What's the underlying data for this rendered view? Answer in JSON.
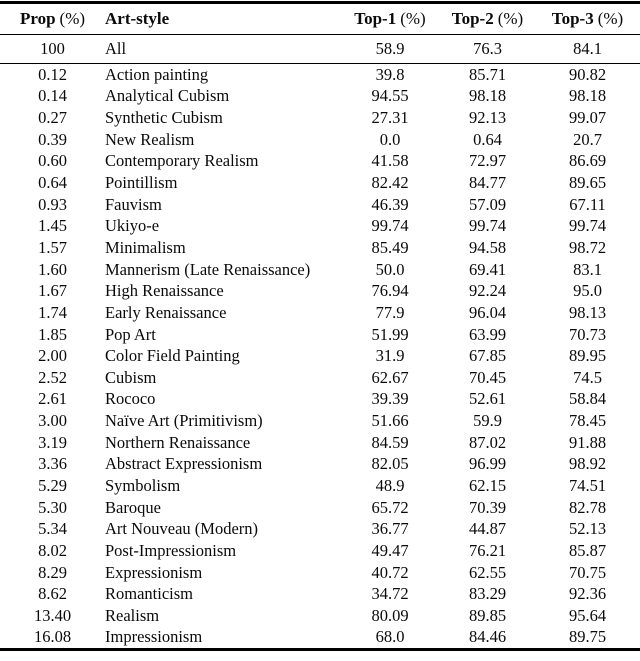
{
  "chart_data": {
    "type": "table",
    "columns": [
      {
        "name": "Prop",
        "unit": "(%)"
      },
      {
        "name": "Art-style",
        "unit": ""
      },
      {
        "name": "Top-1",
        "unit": "(%)"
      },
      {
        "name": "Top-2",
        "unit": "(%)"
      },
      {
        "name": "Top-3",
        "unit": "(%)"
      }
    ],
    "summary_row": [
      "100",
      "All",
      "58.9",
      "76.3",
      "84.1"
    ],
    "rows": [
      [
        "0.12",
        "Action painting",
        "39.8",
        "85.71",
        "90.82"
      ],
      [
        "0.14",
        "Analytical Cubism",
        "94.55",
        "98.18",
        "98.18"
      ],
      [
        "0.27",
        "Synthetic Cubism",
        "27.31",
        "92.13",
        "99.07"
      ],
      [
        "0.39",
        "New Realism",
        "0.0",
        "0.64",
        "20.7"
      ],
      [
        "0.60",
        "Contemporary Realism",
        "41.58",
        "72.97",
        "86.69"
      ],
      [
        "0.64",
        "Pointillism",
        "82.42",
        "84.77",
        "89.65"
      ],
      [
        "0.93",
        "Fauvism",
        "46.39",
        "57.09",
        "67.11"
      ],
      [
        "1.45",
        "Ukiyo-e",
        "99.74",
        "99.74",
        "99.74"
      ],
      [
        "1.57",
        "Minimalism",
        "85.49",
        "94.58",
        "98.72"
      ],
      [
        "1.60",
        "Mannerism (Late Renaissance)",
        "50.0",
        "69.41",
        "83.1"
      ],
      [
        "1.67",
        "High Renaissance",
        "76.94",
        "92.24",
        "95.0"
      ],
      [
        "1.74",
        "Early Renaissance",
        "77.9",
        "96.04",
        "98.13"
      ],
      [
        "1.85",
        "Pop Art",
        "51.99",
        "63.99",
        "70.73"
      ],
      [
        "2.00",
        "Color Field Painting",
        "31.9",
        "67.85",
        "89.95"
      ],
      [
        "2.52",
        "Cubism",
        "62.67",
        "70.45",
        "74.5"
      ],
      [
        "2.61",
        "Rococo",
        "39.39",
        "52.61",
        "58.84"
      ],
      [
        "3.00",
        "Naïve Art (Primitivism)",
        "51.66",
        "59.9",
        "78.45"
      ],
      [
        "3.19",
        "Northern Renaissance",
        "84.59",
        "87.02",
        "91.88"
      ],
      [
        "3.36",
        "Abstract Expressionism",
        "82.05",
        "96.99",
        "98.92"
      ],
      [
        "5.29",
        "Symbolism",
        "48.9",
        "62.15",
        "74.51"
      ],
      [
        "5.30",
        "Baroque",
        "65.72",
        "70.39",
        "82.78"
      ],
      [
        "5.34",
        "Art Nouveau (Modern)",
        "36.77",
        "44.87",
        "52.13"
      ],
      [
        "8.02",
        "Post-Impressionism",
        "49.47",
        "76.21",
        "85.87"
      ],
      [
        "8.29",
        "Expressionism",
        "40.72",
        "62.55",
        "70.75"
      ],
      [
        "8.62",
        "Romanticism",
        "34.72",
        "83.29",
        "92.36"
      ],
      [
        "13.40",
        "Realism",
        "80.09",
        "89.85",
        "95.64"
      ],
      [
        "16.08",
        "Impressionism",
        "68.0",
        "84.46",
        "89.75"
      ]
    ]
  }
}
